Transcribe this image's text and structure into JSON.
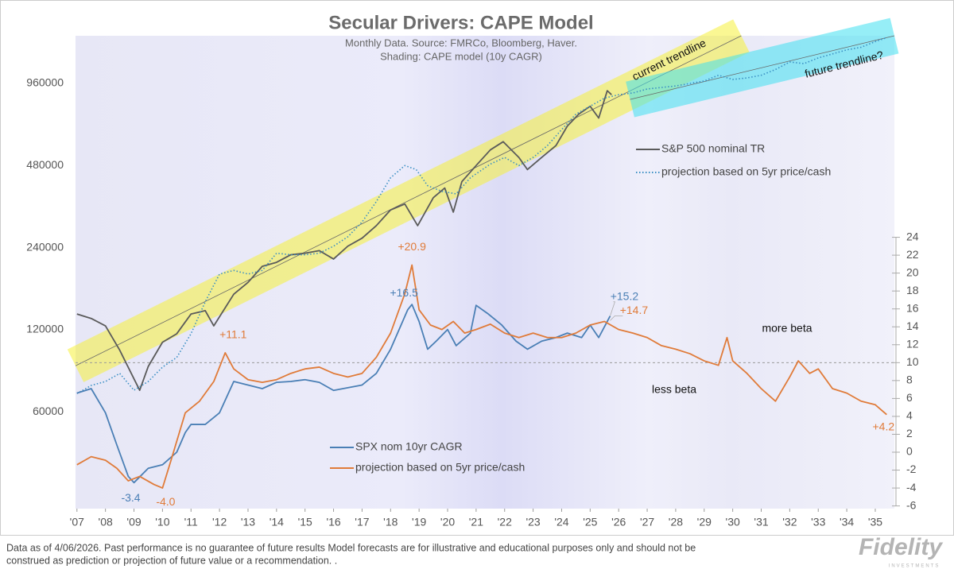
{
  "chart_data": {
    "type": "line",
    "title": "Secular Drivers: CAPE Model",
    "subtitle": [
      "Monthly Data. Source: FMRCo, Bloomberg, Haver.",
      "Shading: CAPE model (10y CAGR)"
    ],
    "xlim": [
      2006.95,
      2035.67
    ],
    "xticks": [
      {
        "value": 2007,
        "label": "'07"
      },
      {
        "value": 2008,
        "label": "'08"
      },
      {
        "value": 2009,
        "label": "'09"
      },
      {
        "value": 2010,
        "label": "'10"
      },
      {
        "value": 2011,
        "label": "'11"
      },
      {
        "value": 2012,
        "label": "'12"
      },
      {
        "value": 2013,
        "label": "'13"
      },
      {
        "value": 2014,
        "label": "'14"
      },
      {
        "value": 2015,
        "label": "'15"
      },
      {
        "value": 2016,
        "label": "'16"
      },
      {
        "value": 2017,
        "label": "'17"
      },
      {
        "value": 2018,
        "label": "'18"
      },
      {
        "value": 2019,
        "label": "'19"
      },
      {
        "value": 2020,
        "label": "'20"
      },
      {
        "value": 2021,
        "label": "'21"
      },
      {
        "value": 2022,
        "label": "'22"
      },
      {
        "value": 2023,
        "label": "'23"
      },
      {
        "value": 2024,
        "label": "'24"
      },
      {
        "value": 2025,
        "label": "'25"
      },
      {
        "value": 2026,
        "label": "'26"
      },
      {
        "value": 2027,
        "label": "'27"
      },
      {
        "value": 2028,
        "label": "'28"
      },
      {
        "value": 2029,
        "label": "'29"
      },
      {
        "value": 2030,
        "label": "'30"
      },
      {
        "value": 2031,
        "label": "'31"
      },
      {
        "value": 2032,
        "label": "'32"
      },
      {
        "value": 2033,
        "label": "'33"
      },
      {
        "value": 2034,
        "label": "'34"
      },
      {
        "value": 2035,
        "label": "'35"
      }
    ],
    "ylim": [
      26500,
      1436000
    ],
    "yscale": "log",
    "yticks": [
      60000,
      120000,
      240000,
      480000,
      960000
    ],
    "y2lim": [
      -6.3,
      46.5
    ],
    "y2ticks": [
      -6,
      -4,
      -2,
      0,
      2,
      4,
      6,
      8,
      10,
      12,
      14,
      16,
      18,
      20,
      22,
      24
    ],
    "reference_line": {
      "axis": "y2",
      "value": 10
    },
    "series": [
      {
        "name": "S&P 500 nominal TR",
        "color": "#5a5a5a",
        "style": "solid",
        "x": [
          2007.0,
          2007.5,
          2008.0,
          2008.5,
          2009.2,
          2009.5,
          2010.0,
          2010.5,
          2011.0,
          2011.5,
          2011.8,
          2012.5,
          2013.0,
          2013.5,
          2014.0,
          2014.5,
          2015.0,
          2015.5,
          2016.0,
          2016.5,
          2017.0,
          2017.5,
          2018.0,
          2018.5,
          2018.95,
          2019.5,
          2019.9,
          2020.2,
          2020.5,
          2021.0,
          2021.5,
          2021.95,
          2022.5,
          2022.8,
          2023.3,
          2023.8,
          2024.2,
          2024.6,
          2025.0,
          2025.3,
          2025.6,
          2025.75
        ],
        "values": [
          137000,
          132000,
          124000,
          101000,
          72000,
          88000,
          108000,
          116000,
          137000,
          141000,
          124000,
          162000,
          179000,
          205000,
          212000,
          226000,
          229000,
          234000,
          218000,
          243000,
          260000,
          289000,
          330000,
          347000,
          289000,
          366000,
          397000,
          324000,
          419000,
          480000,
          548000,
          587000,
          514000,
          464000,
          514000,
          568000,
          670000,
          741000,
          792000,
          717000,
          903000,
          873000
        ]
      },
      {
        "name": "projection based on 5yr price/cash",
        "color": "#3a8fc4",
        "style": "dotted",
        "x": [
          2007.0,
          2007.5,
          2008.0,
          2008.5,
          2009.0,
          2009.5,
          2010.0,
          2010.5,
          2011.0,
          2011.5,
          2012.0,
          2012.5,
          2013.0,
          2013.5,
          2014.0,
          2014.5,
          2015.0,
          2015.5,
          2016.0,
          2016.5,
          2017.0,
          2017.5,
          2018.0,
          2018.5,
          2018.9,
          2019.3,
          2019.8,
          2020.3,
          2020.8,
          2021.5,
          2022.0,
          2022.5,
          2023.0,
          2023.5,
          2024.0,
          2024.5,
          2025.0,
          2025.5,
          2026.0,
          2026.5,
          2027.0,
          2027.5,
          2028.0,
          2028.5,
          2029.0,
          2029.5,
          2030.0,
          2030.5,
          2031.0,
          2031.5,
          2032.0,
          2032.5,
          2033.0,
          2033.5,
          2034.0,
          2034.5,
          2035.0,
          2035.4
        ],
        "values": [
          70000,
          75000,
          77500,
          83000,
          72000,
          77500,
          87500,
          95000,
          116000,
          152000,
          192000,
          198000,
          192000,
          198000,
          229000,
          226000,
          226000,
          229000,
          243000,
          263000,
          298000,
          354000,
          433000,
          480000,
          464000,
          405000,
          386000,
          378000,
          433000,
          486000,
          514000,
          480000,
          514000,
          568000,
          650000,
          741000,
          792000,
          848000,
          873000,
          886000,
          916000,
          928000,
          940000,
          960000,
          980000,
          1029000,
          993000,
          1006000,
          1029000,
          1080000,
          1151000,
          1135000,
          1191000,
          1232000,
          1275000,
          1303000,
          1367000,
          1413000
        ]
      },
      {
        "name": "SPX nom 10yr CAGR",
        "color": "#4a7fb5",
        "style": "solid",
        "axis": "y2",
        "x": [
          2007.0,
          2007.5,
          2008.0,
          2008.4,
          2008.8,
          2009.0,
          2009.5,
          2010.0,
          2010.5,
          2010.8,
          2011.0,
          2011.5,
          2012.0,
          2012.5,
          2013.0,
          2013.5,
          2014.0,
          2014.5,
          2015.0,
          2015.5,
          2016.0,
          2016.5,
          2017.0,
          2017.5,
          2018.0,
          2018.6,
          2018.75,
          2019.0,
          2019.3,
          2019.6,
          2020.0,
          2020.3,
          2020.8,
          2021.0,
          2021.4,
          2021.9,
          2022.4,
          2022.8,
          2023.3,
          2023.8,
          2024.2,
          2024.7,
          2025.0,
          2025.3,
          2025.7
        ],
        "values": [
          6.6,
          7.1,
          4.4,
          0.8,
          -2.7,
          -3.4,
          -1.8,
          -1.4,
          0.0,
          2.2,
          3.1,
          3.1,
          4.4,
          7.9,
          7.5,
          7.1,
          7.8,
          7.9,
          8.1,
          7.8,
          6.9,
          7.2,
          7.5,
          8.8,
          11.5,
          15.9,
          16.5,
          14.6,
          11.5,
          12.4,
          13.7,
          11.9,
          13.3,
          16.4,
          15.5,
          14.2,
          12.4,
          11.5,
          12.4,
          12.8,
          13.3,
          12.8,
          14.2,
          12.8,
          15.2
        ]
      },
      {
        "name": "projection based on 5yr price/cash",
        "color": "#e07b39",
        "style": "solid",
        "axis": "y2",
        "x": [
          2007.0,
          2007.5,
          2008.0,
          2008.4,
          2008.8,
          2009.2,
          2009.7,
          2010.0,
          2010.3,
          2010.8,
          2011.3,
          2011.8,
          2012.2,
          2012.5,
          2013.0,
          2013.5,
          2014.0,
          2014.5,
          2015.0,
          2015.5,
          2016.0,
          2016.5,
          2017.0,
          2017.5,
          2018.0,
          2018.5,
          2018.75,
          2019.0,
          2019.4,
          2019.8,
          2020.2,
          2020.6,
          2021.0,
          2021.5,
          2022.0,
          2022.5,
          2023.0,
          2023.5,
          2024.0,
          2024.5,
          2025.0,
          2025.5,
          2026.0,
          2026.5,
          2027.0,
          2027.5,
          2028.0,
          2028.5,
          2029.0,
          2029.5,
          2029.8,
          2030.0,
          2030.5,
          2031.0,
          2031.5,
          2032.0,
          2032.3,
          2032.7,
          2033.0,
          2033.5,
          2034.0,
          2034.5,
          2035.0,
          2035.4
        ],
        "values": [
          -1.4,
          -0.5,
          -0.9,
          -1.8,
          -3.2,
          -2.7,
          -3.6,
          -4.0,
          -0.9,
          4.4,
          5.7,
          7.9,
          11.1,
          9.3,
          8.1,
          7.8,
          8.1,
          8.8,
          9.3,
          9.5,
          8.8,
          8.4,
          8.8,
          10.6,
          13.3,
          17.7,
          20.9,
          15.9,
          14.2,
          13.7,
          14.6,
          13.3,
          13.7,
          14.3,
          13.3,
          12.8,
          13.3,
          12.8,
          12.8,
          13.3,
          14.2,
          14.6,
          13.7,
          13.3,
          12.8,
          11.9,
          11.5,
          11.0,
          10.2,
          9.7,
          12.8,
          10.2,
          8.8,
          7.1,
          5.7,
          8.4,
          10.2,
          8.8,
          9.3,
          7.1,
          6.6,
          5.7,
          5.3,
          4.2
        ]
      }
    ],
    "trendlines": [
      {
        "label": "current trendline",
        "x": [
          2006.95,
          2030.3
        ],
        "values": [
          88500,
          1436000
        ],
        "band_color": "#f5f03a"
      },
      {
        "label": "future trendline?",
        "x": [
          2026.4,
          2035.67
        ],
        "values": [
          839000,
          1436000
        ],
        "band_color": "#3fe0f0"
      }
    ],
    "annotations": [
      {
        "text": "+20.9",
        "x": 2018.75,
        "y": 20.9,
        "color": "#e07b39"
      },
      {
        "text": "+16.5",
        "x": 2018.75,
        "y": 16.5,
        "color": "#4a7fb5"
      },
      {
        "text": "+15.2",
        "x": 2025.7,
        "y": 15.2,
        "color": "#4a7fb5"
      },
      {
        "text": "+14.7",
        "x": 2025.7,
        "y": 14.7,
        "color": "#e07b39"
      },
      {
        "text": "+11.1",
        "x": 2012.2,
        "y": 11.1,
        "color": "#e07b39"
      },
      {
        "text": "-3.4",
        "x": 2009.0,
        "y": -3.4,
        "color": "#4a7fb5"
      },
      {
        "text": "-4.0",
        "x": 2010.0,
        "y": -4.0,
        "color": "#e07b39"
      },
      {
        "text": "+4.2",
        "x": 2035.4,
        "y": 4.2,
        "color": "#e07b39"
      }
    ],
    "notes": [
      "more beta",
      "less beta"
    ]
  },
  "footnote": [
    "Data as of 4/06/2026. Past performance is no guarantee of future results Model forecasts are for illustrative and educational purposes only and should not be",
    "construed as prediction or projection of future value or a recommendation. ."
  ],
  "logo": {
    "name": "Fidelity",
    "sub": "INVESTMENTS"
  }
}
